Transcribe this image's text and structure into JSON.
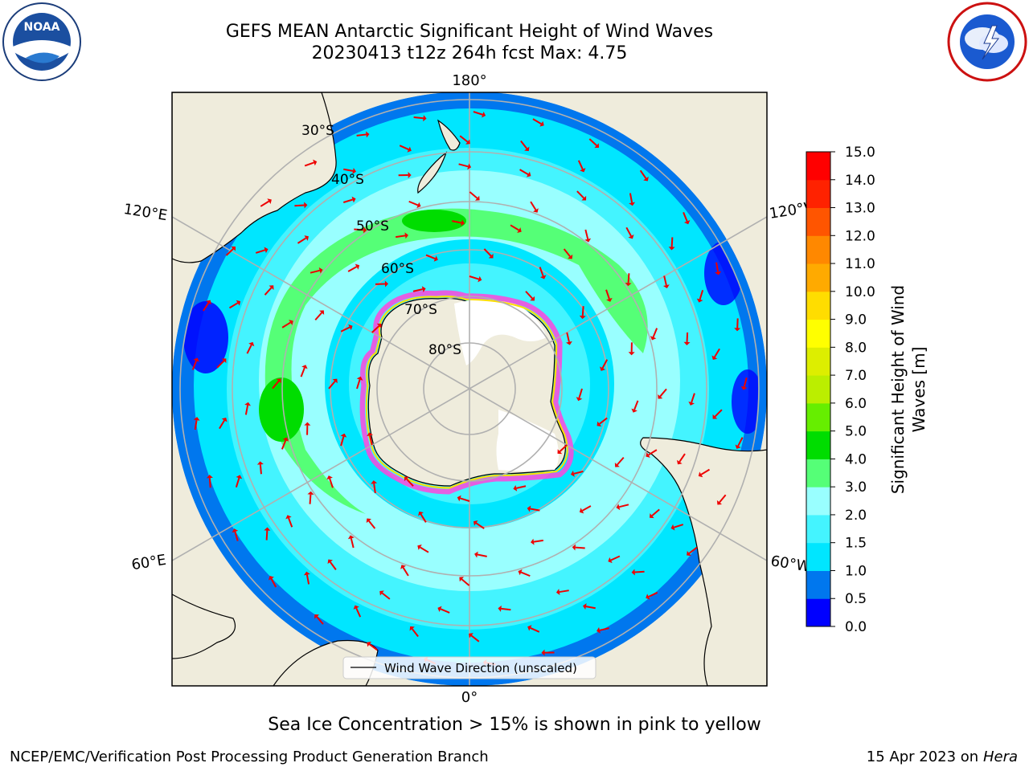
{
  "header": {
    "title_line1": "GEFS MEAN Antarctic Significant Height of Wind Waves",
    "title_line2": "20230413 t12z 264h fcst   Max: 4.75"
  },
  "logos": {
    "left": {
      "name": "NOAA",
      "text": "NOAA",
      "ring_text": "NATIONAL OCEANIC AND ATMOSPHERIC ADMINISTRATION · U.S. DEPARTMENT OF COMMERCE"
    },
    "right": {
      "name": "National Weather Service",
      "ring_text": "NATIONAL WEATHER SERVICE"
    }
  },
  "map": {
    "longitude_labels": {
      "top": "180°",
      "bottom": "0°",
      "upper_left": "120°E",
      "upper_right": "120°W",
      "lower_left": "60°E",
      "lower_right": "60°W"
    },
    "latitude_labels": [
      "30°S",
      "40°S",
      "50°S",
      "60°S",
      "70°S",
      "80°S"
    ],
    "legend_label": "Wind Wave Direction (unscaled)",
    "colors": {
      "land": "#efecdc",
      "ice_edge": "#ff44dd",
      "arrow": "#ee0000",
      "grid": "#b0b0b0"
    }
  },
  "colorbar": {
    "title_line1": "Significant Height of Wind",
    "title_line2": "Waves [m]",
    "ticks": [
      "0.0",
      "0.5",
      "1.0",
      "1.5",
      "2.0",
      "3.0",
      "4.0",
      "5.0",
      "6.0",
      "7.0",
      "8.0",
      "9.0",
      "10.0",
      "11.0",
      "12.0",
      "13.0",
      "14.0",
      "15.0"
    ],
    "colors": [
      "#0000ff",
      "#0077ee",
      "#00e6ff",
      "#44f4ff",
      "#99ffff",
      "#55ff77",
      "#00dd00",
      "#66ee00",
      "#bbee00",
      "#ddee00",
      "#ffff00",
      "#ffdd00",
      "#ffaa00",
      "#ff8800",
      "#ff5500",
      "#ff2200",
      "#ff0000"
    ]
  },
  "caption": "Sea Ice Concentration > 15% is shown in pink to yellow",
  "footer": {
    "left": "NCEP/EMC/Verification Post Processing Product Generation Branch",
    "right_date": "15 Apr 2023 on ",
    "right_machine": "Hera"
  }
}
